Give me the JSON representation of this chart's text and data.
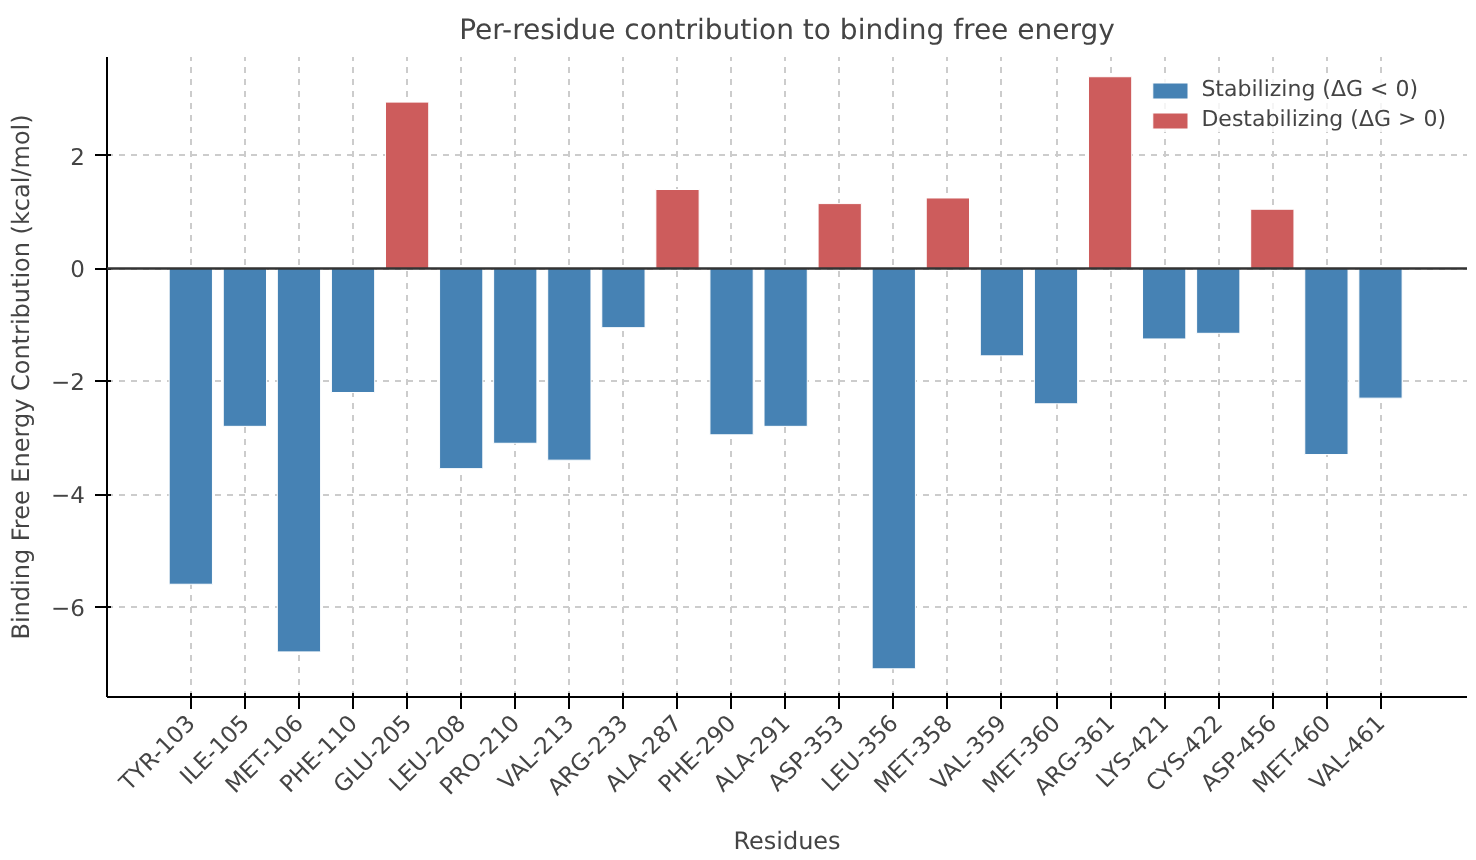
{
  "chart_data": {
    "type": "bar",
    "title": "Per-residue contribution to binding free energy",
    "xlabel": "Residues",
    "ylabel": "Binding Free Energy Contribution (kcal/mol)",
    "categories": [
      "TYR-103",
      "ILE-105",
      "MET-106",
      "PHE-110",
      "GLU-205",
      "LEU-208",
      "PRO-210",
      "VAL-213",
      "ARG-233",
      "ALA-287",
      "PHE-290",
      "ALA-291",
      "ASP-353",
      "LEU-356",
      "MET-358",
      "VAL-359",
      "MET-360",
      "ARG-361",
      "LYS-421",
      "CYS-422",
      "ASP-456",
      "MET-460",
      "VAL-461"
    ],
    "series": [
      {
        "name": "Stabilizing (ΔG < 0)",
        "color": "#4682b4",
        "values": [
          -5.6,
          -2.8,
          -6.8,
          -2.2,
          null,
          -3.55,
          -3.1,
          -3.4,
          -1.05,
          null,
          -2.95,
          -2.8,
          null,
          -7.1,
          null,
          -1.55,
          -2.4,
          null,
          -1.25,
          -1.15,
          null,
          -3.3,
          -2.3
        ]
      },
      {
        "name": "Destabilizing (ΔG > 0)",
        "color": "#cd5c5c",
        "values": [
          null,
          null,
          null,
          null,
          2.95,
          null,
          null,
          null,
          null,
          1.4,
          null,
          null,
          1.15,
          null,
          1.25,
          null,
          null,
          3.4,
          null,
          null,
          1.05,
          null,
          null
        ]
      }
    ],
    "ylim": [
      -7.6,
      3.75
    ],
    "yticks": [
      -6,
      -4,
      -2,
      0,
      2
    ],
    "ref_lines": [
      {
        "axis": "y",
        "value": 0,
        "color": "#333333"
      }
    ],
    "grid": true,
    "legend": "top right"
  }
}
